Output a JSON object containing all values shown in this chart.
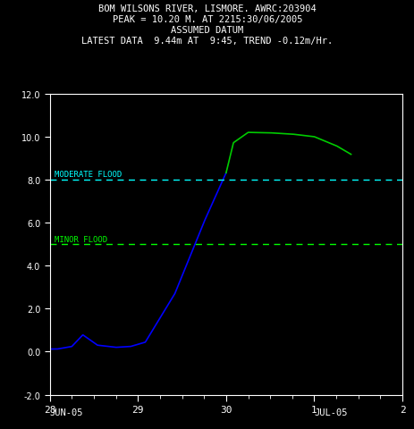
{
  "title_line1": "BOM WILSONS RIVER, LISMORE. AWRC:203904",
  "title_line2": "PEAK = 10.20 M. AT 2215:30/06/2005",
  "title_line3": "ASSUMED DATUM",
  "title_line4": "LATEST DATA  9.44m AT  9:45, TREND -0.12m/Hr.",
  "background_color": "#000000",
  "text_color": "#ffffff",
  "moderate_flood_level": 8.0,
  "moderate_flood_label": "MODERATE FLOOD",
  "moderate_flood_color": "#00ffff",
  "minor_flood_level": 5.0,
  "minor_flood_label": "MINOR FLOOD",
  "minor_flood_color": "#00ff00",
  "ylim": [
    -2,
    12
  ],
  "yticks": [
    -2,
    0,
    2,
    4,
    6,
    8,
    10,
    12
  ],
  "xlabel_left": "JUN-05",
  "xlabel_right": "JUL-05",
  "xtick_labels": [
    "28",
    "29",
    "30",
    "1",
    "2"
  ],
  "xtick_pos": [
    28,
    29,
    30,
    31,
    32
  ],
  "xlim": [
    28,
    32
  ],
  "line_color_blue": "#0000ff",
  "line_color_green": "#00cc00",
  "axis_color": "#ffffff",
  "split_hour": 48,
  "end_hour": 82
}
